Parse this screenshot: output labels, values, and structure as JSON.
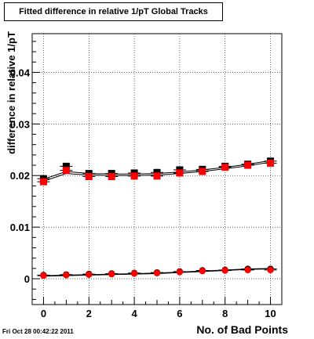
{
  "chart_data": {
    "type": "scatter",
    "title": "Fitted difference in relative 1/pT  Global Tracks",
    "xlabel": "No. of Bad Points",
    "ylabel": "difference in relative 1/pT",
    "xlim": [
      -0.5,
      10.5
    ],
    "ylim": [
      -0.005,
      0.0475
    ],
    "x_ticks": [
      0,
      2,
      4,
      6,
      8,
      10
    ],
    "x_tick_labels": [
      "0",
      "2",
      "4",
      "6",
      "8",
      "10"
    ],
    "y_ticks": [
      0,
      0.01,
      0.02,
      0.03,
      0.04
    ],
    "y_tick_labels": [
      "0",
      "0.01",
      "0.02",
      "0.03",
      "0.04"
    ],
    "grid": true,
    "series": [
      {
        "marker": "square",
        "color": "#000000",
        "x": [
          0,
          1,
          2,
          3,
          4,
          5,
          6,
          7,
          8,
          9,
          10
        ],
        "y": [
          0.0194,
          0.0218,
          0.0204,
          0.0204,
          0.0205,
          0.0206,
          0.0211,
          0.0212,
          0.0218,
          0.0222,
          0.0228
        ],
        "fit": [
          0.0193,
          0.0208,
          0.0204,
          0.0203,
          0.0203,
          0.0204,
          0.0207,
          0.0211,
          0.0216,
          0.0222,
          0.0229
        ]
      },
      {
        "marker": "square",
        "color": "#ff0000",
        "x": [
          0,
          1,
          2,
          3,
          4,
          5,
          6,
          7,
          8,
          9,
          10
        ],
        "y": [
          0.0188,
          0.021,
          0.0198,
          0.0198,
          0.0199,
          0.0199,
          0.0205,
          0.0208,
          0.0216,
          0.022,
          0.0224
        ],
        "fit": [
          0.0189,
          0.0204,
          0.0201,
          0.02,
          0.02,
          0.0201,
          0.0204,
          0.0208,
          0.0213,
          0.0219,
          0.0226
        ]
      },
      {
        "marker": "circle",
        "color": "#000000",
        "x": [
          0,
          1,
          2,
          3,
          4,
          5,
          6,
          7,
          8,
          9,
          10
        ],
        "y": [
          0.0007,
          0.0008,
          0.0009,
          0.001,
          0.0011,
          0.0012,
          0.0014,
          0.0016,
          0.0017,
          0.0019,
          0.0019
        ],
        "fit": [
          0.0006,
          0.0007,
          0.0008,
          0.0009,
          0.001,
          0.0011,
          0.0013,
          0.0015,
          0.0017,
          0.0019,
          0.002
        ]
      },
      {
        "marker": "circle",
        "color": "#ff0000",
        "x": [
          0,
          1,
          2,
          3,
          4,
          5,
          6,
          7,
          8,
          9,
          10
        ],
        "y": [
          0.0006,
          0.0007,
          0.0008,
          0.0009,
          0.001,
          0.0011,
          0.0013,
          0.0015,
          0.0016,
          0.0017,
          0.0017
        ],
        "fit": [
          0.0005,
          0.0006,
          0.0007,
          0.0008,
          0.0009,
          0.001,
          0.0012,
          0.0014,
          0.0016,
          0.0018,
          0.0019
        ]
      }
    ]
  },
  "timestamp": "Fri Oct 28 00:42:22 2011"
}
